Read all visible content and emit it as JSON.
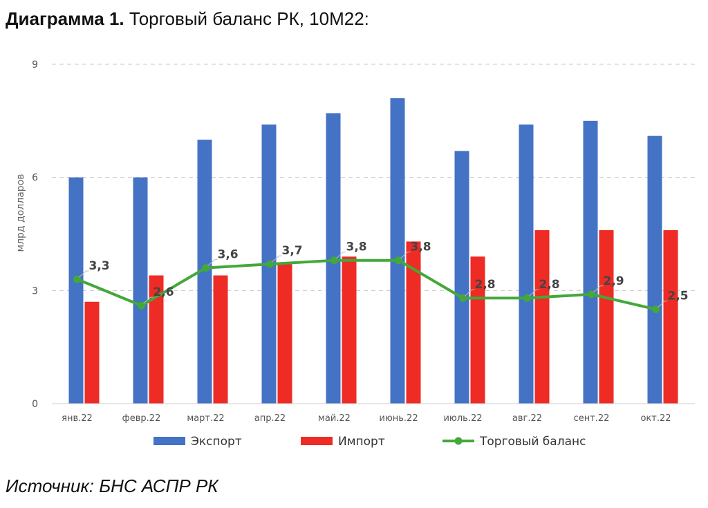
{
  "title": {
    "bold": "Диаграмма 1.",
    "rest": " Торговый баланс РК, 10М22:"
  },
  "source": "Источник: БНС АСПР РК",
  "colors": {
    "export": "#4472c4",
    "import": "#ee2b24",
    "balance": "#43a83a"
  },
  "chart_data": {
    "type": "bar",
    "categories": [
      "янв.22",
      "февр.22",
      "март.22",
      "апр.22",
      "май.22",
      "июнь.22",
      "июль.22",
      "авг.22",
      "сент.22",
      "окт.22"
    ],
    "series": [
      {
        "name": "Экспорт",
        "type": "bar",
        "values": [
          6.0,
          6.0,
          7.0,
          7.4,
          7.7,
          8.1,
          6.7,
          7.4,
          7.5,
          7.1
        ]
      },
      {
        "name": "Импорт",
        "type": "bar",
        "values": [
          2.7,
          3.4,
          3.4,
          3.7,
          3.9,
          4.3,
          3.9,
          4.6,
          4.6,
          4.6
        ]
      },
      {
        "name": "Торговый баланс",
        "type": "line",
        "values": [
          3.3,
          2.6,
          3.6,
          3.7,
          3.8,
          3.8,
          2.8,
          2.8,
          2.9,
          2.5
        ],
        "labels": [
          "3,3",
          "2,6",
          "3,6",
          "3,7",
          "3,8",
          "3,8",
          "2,8",
          "2,8",
          "2,9",
          "2,5"
        ]
      }
    ],
    "ylabel": "млрд долларов",
    "ylim": [
      0,
      9
    ],
    "yticks": [
      0,
      3,
      6,
      9
    ],
    "grid": true,
    "legend": "bottom"
  }
}
